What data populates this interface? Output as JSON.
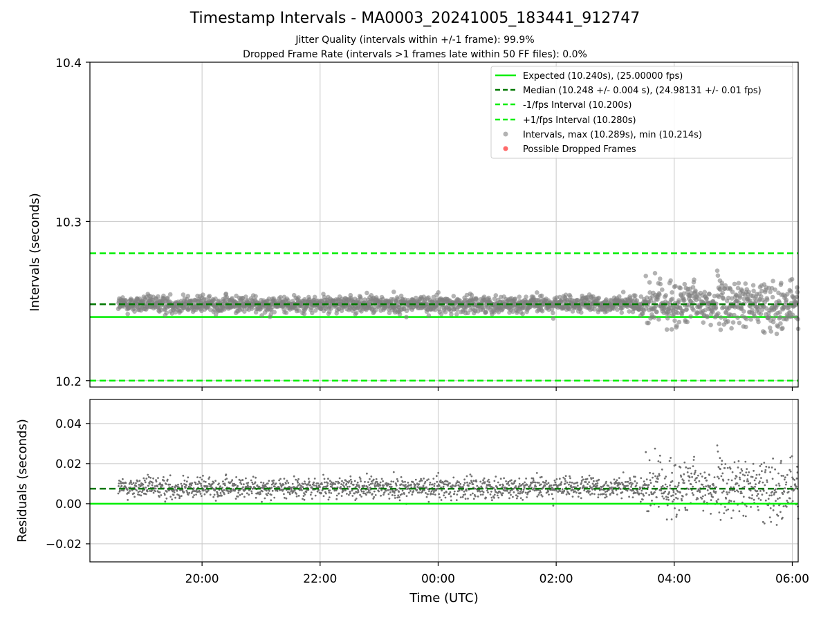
{
  "title": "Timestamp Intervals - MA0003_20241005_183441_912747",
  "subtitle_1": "Jitter Quality (intervals within +/-1 frame): 99.9%",
  "subtitle_2": "Dropped Frame Rate (intervals >1 frames late within 50 FF files): 0.0%",
  "colors": {
    "expected": "#00ee00",
    "median": "#007700",
    "interval_bounds": "#00ee00",
    "points": "#808080",
    "dropped": "#ff4444",
    "grid": "#c8c8c8"
  },
  "chart_data": [
    {
      "type": "scatter",
      "panel": "top",
      "ylabel": "Intervals (seconds)",
      "ylim": [
        10.196,
        10.4
      ],
      "yticks": [
        "10.2",
        "10.3",
        "10.4"
      ],
      "ytick_values": [
        10.2,
        10.3,
        10.4
      ],
      "x_range_hours": [
        18.1,
        30.1
      ],
      "grid": true,
      "legend_placement": "top-right",
      "legend": [
        {
          "label": "Expected (10.240s), (25.00000 fps)",
          "style": "solid"
        },
        {
          "label": "Median (10.248 +/- 0.004 s), (24.98131 +/- 0.01 fps)",
          "style": "dashed-dark"
        },
        {
          "label": "-1/fps Interval (10.200s)",
          "style": "dashed"
        },
        {
          "label": "+1/fps Interval (10.280s)",
          "style": "dashed"
        },
        {
          "label": "Intervals, max (10.289s), min (10.214s)",
          "style": "marker-gray"
        },
        {
          "label": "Possible Dropped Frames",
          "style": "marker-red"
        }
      ],
      "lines": {
        "expected": 10.24,
        "median": 10.248,
        "minus_1fps": 10.2,
        "plus_1fps": 10.28
      },
      "series": [
        {
          "x_start": 18.58,
          "x_end": 30.1,
          "center": 10.248,
          "spread_normal": 0.0045,
          "spread_late": 0.012,
          "late_start": 27.5,
          "max": 10.289,
          "min": 10.214,
          "count": 2000
        }
      ]
    },
    {
      "type": "scatter",
      "panel": "bottom",
      "xlabel": "Time (UTC)",
      "ylabel": "Residuals (seconds)",
      "ylim": [
        -0.029,
        0.052
      ],
      "yticks": [
        "−0.02",
        "0.00",
        "0.02",
        "0.04"
      ],
      "ytick_values": [
        -0.02,
        0.0,
        0.02,
        0.04
      ],
      "xticks": [
        "20:00",
        "22:00",
        "00:00",
        "02:00",
        "04:00",
        "06:00"
      ],
      "xtick_hours": [
        20,
        22,
        24,
        26,
        28,
        30
      ],
      "grid": true,
      "lines": {
        "zero": 0.0,
        "median_residual": 0.0075
      }
    }
  ]
}
